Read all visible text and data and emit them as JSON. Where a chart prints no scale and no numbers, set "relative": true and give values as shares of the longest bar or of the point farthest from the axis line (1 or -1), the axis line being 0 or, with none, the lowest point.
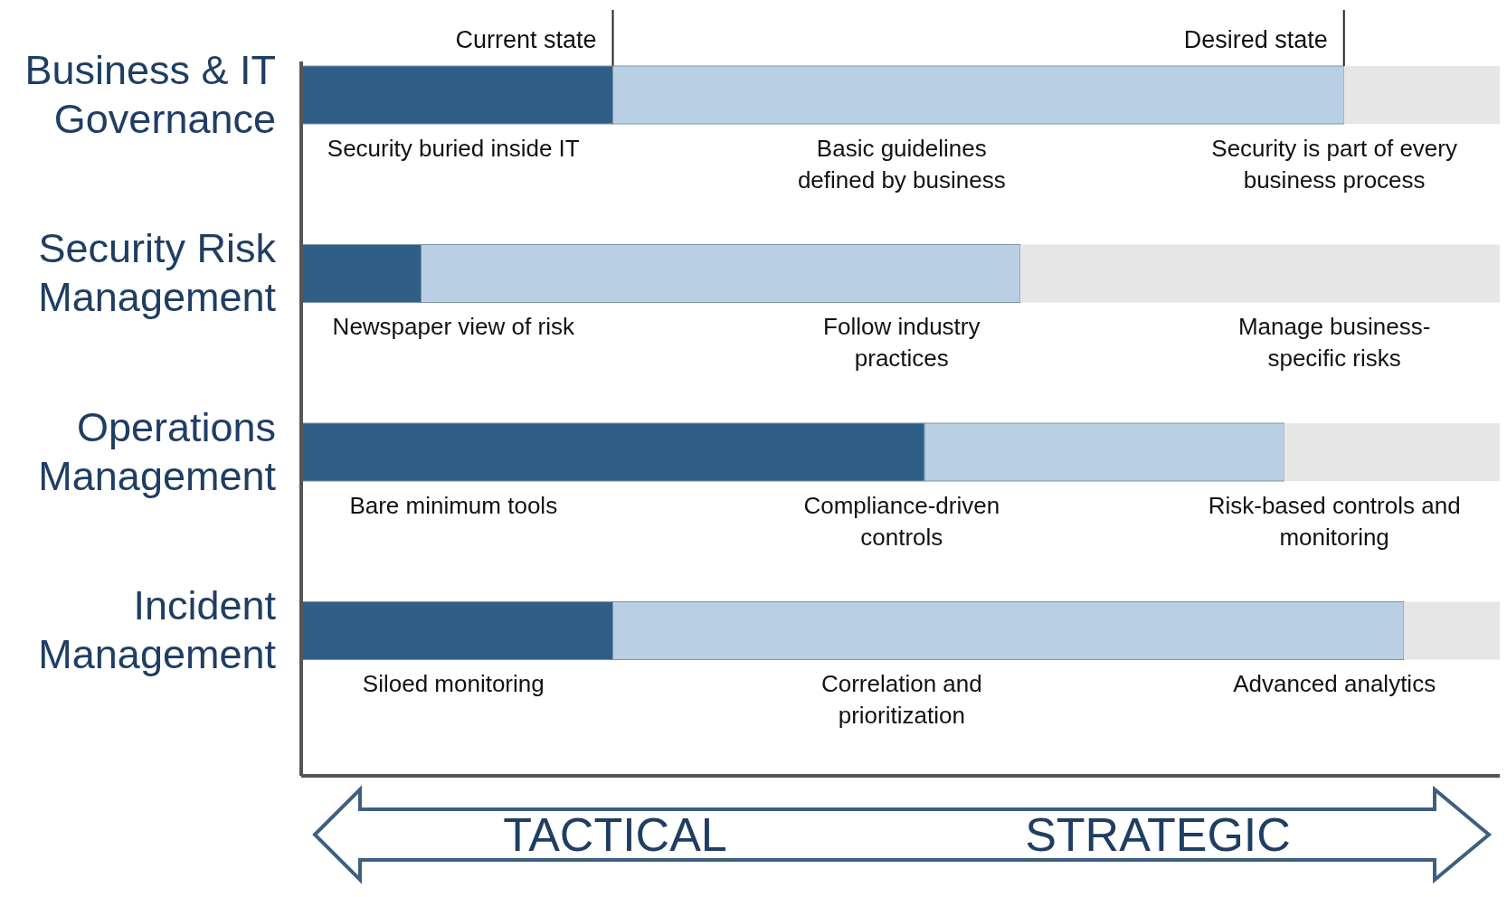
{
  "chart_data": {
    "type": "bar",
    "orientation": "horizontal",
    "stacked": true,
    "relative": true,
    "categories": [
      "Business & IT Governance",
      "Security Risk Management",
      "Operations Management",
      "Incident Management"
    ],
    "series": [
      {
        "name": "Current state",
        "color": "#2f5f86",
        "values": [
          0.26,
          0.1,
          0.52,
          0.26
        ]
      },
      {
        "name": "Desired state",
        "color": "#b8cfe4",
        "values": [
          0.61,
          0.5,
          0.3,
          0.66
        ]
      },
      {
        "color": "#e6e6e6",
        "values": [
          0.13,
          0.4,
          0.18,
          0.08
        ]
      }
    ],
    "annotations": [
      "Security buried inside IT",
      "Basic guidelines defined by business",
      "Security is part of every business process",
      "Newspaper view of risk",
      "Follow industry practices",
      "Manage business-specific risks",
      "Bare minimum tools",
      "Compliance-driven controls",
      "Risk-based controls and monitoring",
      "Siloed monitoring",
      "Correlation and prioritization",
      "Advanced analytics",
      "TACTICAL",
      "STRATEGIC"
    ]
  }
}
